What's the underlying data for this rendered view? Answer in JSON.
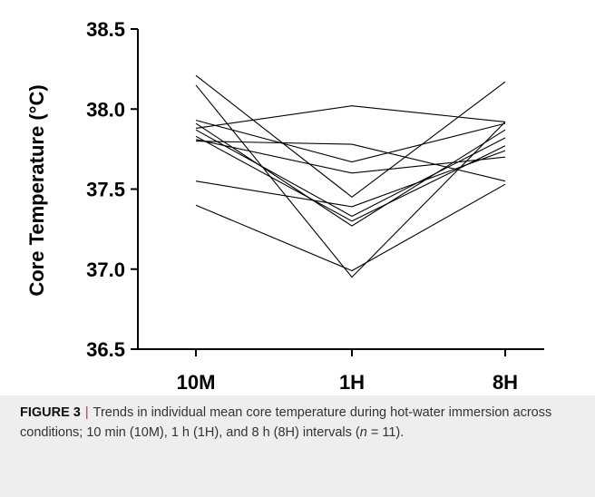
{
  "chart_data": {
    "type": "line",
    "ylabel": "Core Temperature (°C)",
    "xlabel": "",
    "categories": [
      "10M",
      "1H",
      "8H"
    ],
    "ylim": [
      36.5,
      38.5
    ],
    "yticks": [
      "36.5",
      "37.0",
      "37.5",
      "38.0",
      "38.5"
    ],
    "grid": false,
    "legend": "none",
    "line_color": "#000000",
    "series": [
      {
        "values": [
          38.21,
          37.45,
          38.17
        ]
      },
      {
        "values": [
          38.15,
          36.95,
          37.92
        ]
      },
      {
        "values": [
          37.93,
          37.67,
          37.91
        ]
      },
      {
        "values": [
          37.91,
          37.27,
          37.87
        ]
      },
      {
        "values": [
          37.88,
          38.02,
          37.92
        ]
      },
      {
        "values": [
          37.87,
          37.33,
          37.82
        ]
      },
      {
        "values": [
          37.83,
          37.3,
          37.77
        ]
      },
      {
        "values": [
          37.81,
          37.6,
          37.7
        ]
      },
      {
        "values": [
          37.8,
          37.78,
          37.55
        ]
      },
      {
        "values": [
          37.55,
          37.39,
          37.74
        ]
      },
      {
        "values": [
          37.4,
          36.99,
          37.53
        ]
      }
    ]
  },
  "caption": {
    "label": "FIGURE 3",
    "separator": "|",
    "text": "Trends in individual mean core temperature during hot-water immersion across conditions; 10 min (10M), 1 h (1H), and 8 h (8H) intervals (",
    "n_symbol": "n",
    "n_value": " = 11)."
  }
}
